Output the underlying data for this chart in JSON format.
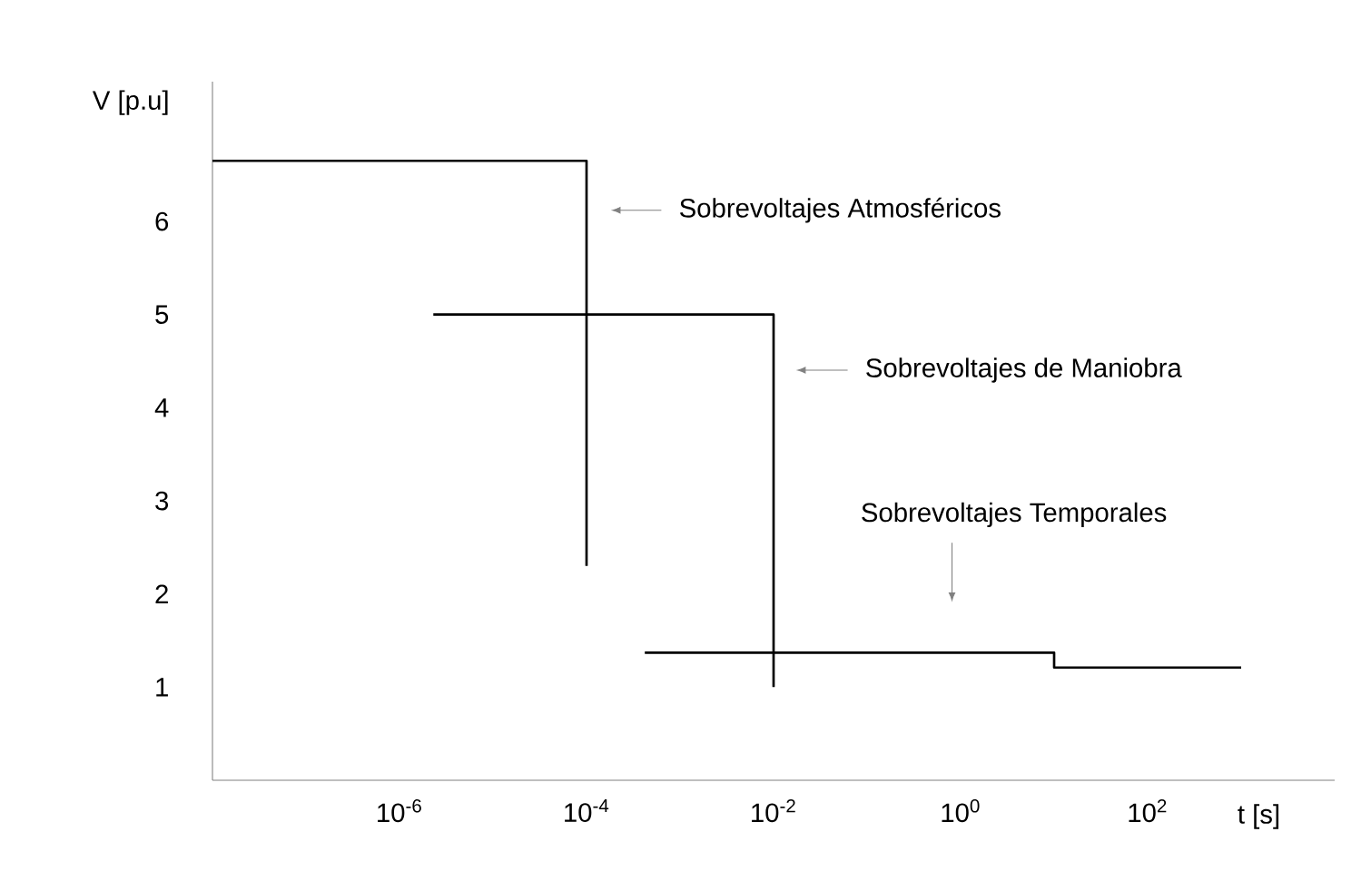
{
  "chart_data": {
    "type": "line",
    "xlabel": "t  [s]",
    "ylabel": "V  [p.u]",
    "log": "x",
    "xlim": [
      1e-08,
      10000.0
    ],
    "ylim": [
      0,
      7.5
    ],
    "xticks": [
      {
        "value": 1e-06,
        "label": "10$^{-6}$"
      },
      {
        "value": 0.0001,
        "label": "10$^{-4}$"
      },
      {
        "value": 0.01,
        "label": "10$^{-2}$"
      },
      {
        "value": 1,
        "label": "10$^{0}$"
      },
      {
        "value": 100,
        "label": "10$^{2}$"
      }
    ],
    "yticks": [
      1,
      2,
      3,
      4,
      5,
      6
    ],
    "series": [
      {
        "color": "#000000",
        "x": [
          1e-08,
          0.0001,
          0.0001
        ],
        "values": [
          6.65,
          6.65,
          2.3
        ]
      },
      {
        "color": "#000000",
        "x": [
          2.3e-06,
          0.01,
          0.01
        ],
        "values": [
          5,
          5,
          1
        ]
      },
      {
        "color": "#000000",
        "x": [
          0.00042,
          10,
          10,
          1000
        ],
        "values": [
          1.37,
          1.37,
          1.21,
          1.21
        ]
      }
    ],
    "annotations": [
      "Sobrevoltajes Atmosféricos",
      "Sobrevoltajes de Maniobra",
      "Sobrevoltajes Temporales"
    ],
    "grid": false,
    "marker": "none",
    "line_style": "solid"
  }
}
